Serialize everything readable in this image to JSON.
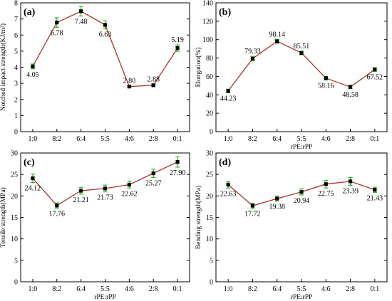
{
  "chart_data": [
    {
      "type": "line",
      "panel_label": "(a)",
      "xlabel": "",
      "ylabel": "Notched impact strength(KJ/m²)",
      "categories": [
        "1:0",
        "8:2",
        "6:4",
        "5:5",
        "4:6",
        "2:8",
        "0:1"
      ],
      "values": [
        4.05,
        6.78,
        7.48,
        6.63,
        2.8,
        2.88,
        5.19
      ],
      "value_labels": [
        "4.05",
        "6.78",
        "7.48",
        "6.63",
        "2.80",
        "2.88",
        "5.19"
      ],
      "errors": [
        0.15,
        0.3,
        0.3,
        0.25,
        0.05,
        0.05,
        0.2
      ],
      "ylim": [
        0,
        8
      ],
      "yticks": [
        0,
        1,
        2,
        3,
        4,
        5,
        6,
        7,
        8
      ],
      "ytick_labels": [
        "0",
        "1",
        "2",
        "3",
        "4",
        "5",
        "6",
        "7",
        "8"
      ],
      "label_pos": [
        "below",
        "below",
        "below",
        "below",
        "above",
        "above",
        "above"
      ]
    },
    {
      "type": "line",
      "panel_label": "(b)",
      "xlabel": "rPE:rPP",
      "ylabel": "Elongation(%)",
      "categories": [
        "1:0",
        "8:2",
        "6:4",
        "5:5",
        "4:6",
        "2:8",
        "0:1"
      ],
      "values": [
        44.23,
        79.33,
        98.14,
        85.51,
        58.16,
        48.58,
        67.52
      ],
      "value_labels": [
        "44.23",
        "79.33",
        "98.14",
        "85.51",
        "58.16",
        "48.58",
        "67.52"
      ],
      "errors": [
        2,
        2.5,
        2,
        2,
        2,
        2,
        2
      ],
      "ylim": [
        0,
        140
      ],
      "yticks": [
        0,
        20,
        40,
        60,
        80,
        100,
        120,
        140
      ],
      "ytick_labels": [
        "0",
        "20",
        "40",
        "60",
        "80",
        "100",
        "120",
        "140"
      ],
      "label_pos": [
        "below",
        "above",
        "above",
        "above",
        "below",
        "below",
        "below"
      ]
    },
    {
      "type": "line",
      "panel_label": "(c)",
      "xlabel": "rPE:rPP",
      "ylabel": "Tensile strength(MPa)",
      "categories": [
        "1:0",
        "8:2",
        "6:4",
        "5:5",
        "4:6",
        "2:8",
        "0:1"
      ],
      "values": [
        24.12,
        17.76,
        21.21,
        21.73,
        22.62,
        25.27,
        27.9
      ],
      "value_labels": [
        "24.12",
        "17.76",
        "21.21",
        "21.73",
        "22.62",
        "25.27",
        "27.90"
      ],
      "errors": [
        1,
        0.6,
        0.8,
        0.8,
        0.8,
        1,
        1.2
      ],
      "ylim": [
        0,
        30
      ],
      "yticks": [
        0,
        5,
        10,
        15,
        20,
        25,
        30
      ],
      "ytick_labels": [
        "0",
        "5",
        "10",
        "15",
        "20",
        "25",
        "30"
      ],
      "label_pos": [
        "below",
        "below",
        "below",
        "below",
        "below",
        "below",
        "below"
      ]
    },
    {
      "type": "line",
      "panel_label": "(d)",
      "xlabel": "rPE:rPP",
      "ylabel": "Bending strength(MPa)",
      "categories": [
        "1:0",
        "8:2",
        "6:4",
        "5:5",
        "4:6",
        "2:8",
        "0:1"
      ],
      "values": [
        22.63,
        17.72,
        19.38,
        20.94,
        22.75,
        23.39,
        21.43
      ],
      "value_labels": [
        "22.63",
        "17.72",
        "19.38",
        "20.94",
        "22.75",
        "23.39",
        "21.43"
      ],
      "errors": [
        0.8,
        0.6,
        0.6,
        0.7,
        0.9,
        0.9,
        0.6
      ],
      "ylim": [
        0,
        30
      ],
      "yticks": [
        0,
        5,
        10,
        15,
        20,
        25,
        30
      ],
      "ytick_labels": [
        "0",
        "5",
        "10",
        "15",
        "20",
        "25",
        "30"
      ],
      "label_pos": [
        "below",
        "below",
        "below",
        "below",
        "below",
        "below",
        "below"
      ]
    }
  ],
  "colors": {
    "line": "#a93226",
    "marker": "#000000",
    "error_bar": "#00b000",
    "axis": "#000000"
  }
}
